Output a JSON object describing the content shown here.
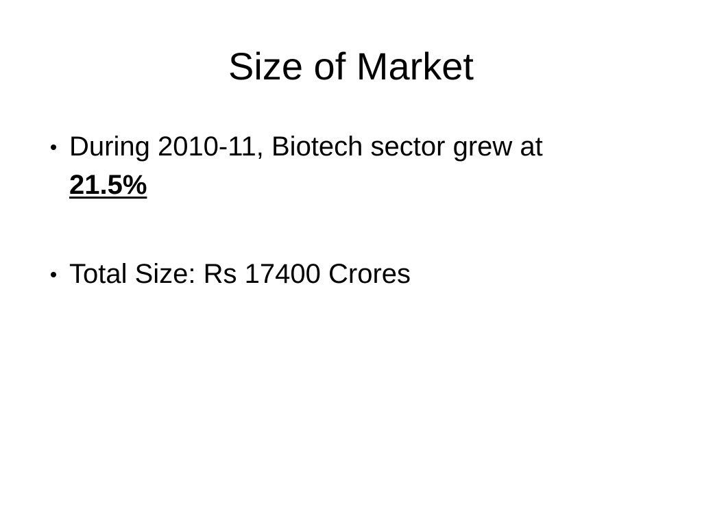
{
  "slide": {
    "title": "Size of Market",
    "bullets": [
      {
        "text": "During 2010-11, Biotech sector grew at",
        "emphasis": "21.5%"
      },
      {
        "text": "Total Size: Rs 17400 Crores"
      }
    ]
  }
}
